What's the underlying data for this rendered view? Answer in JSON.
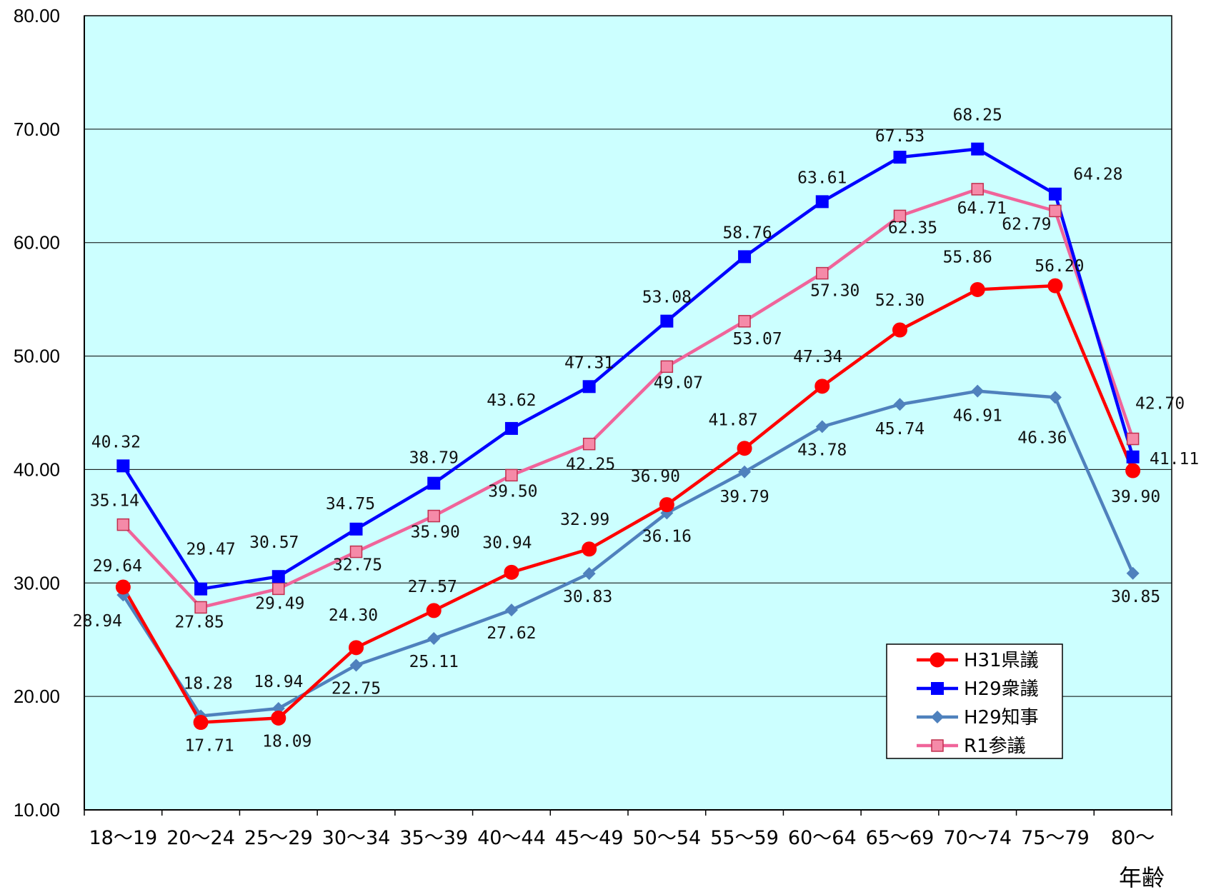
{
  "chart_data": {
    "type": "line",
    "title": "",
    "xlabel": "年齢",
    "ylabel": "",
    "ylim": [
      10,
      80
    ],
    "y_tick_labels": [
      "10.00",
      "20.00",
      "30.00",
      "40.00",
      "50.00",
      "60.00",
      "70.00",
      "80.00"
    ],
    "categories": [
      "18～19",
      "20～24",
      "25～29",
      "30～34",
      "35～39",
      "40～44",
      "45～49",
      "50～54",
      "55～59",
      "60～64",
      "65～69",
      "70～74",
      "75～79",
      "80～"
    ],
    "grid": true,
    "legend_position": "bottom-right",
    "plot_background": "#ccffff",
    "series": [
      {
        "name": "H31県議",
        "color": "#ff0000",
        "marker": "circle",
        "values": [
          29.64,
          17.71,
          18.09,
          24.3,
          27.57,
          30.94,
          32.99,
          36.9,
          41.87,
          47.34,
          52.3,
          55.86,
          56.2,
          39.9
        ],
        "labels": [
          "29.64",
          "17.71",
          "18.09",
          "24.30",
          "27.57",
          "30.94",
          "32.99",
          "36.90",
          "41.87",
          "47.34",
          "52.30",
          "55.86",
          "56.20",
          "39.90"
        ]
      },
      {
        "name": "H29衆議",
        "color": "#0000ff",
        "marker": "square",
        "values": [
          40.32,
          29.47,
          30.57,
          34.75,
          38.79,
          43.62,
          47.31,
          53.08,
          58.76,
          63.61,
          67.53,
          68.25,
          64.28,
          41.11
        ],
        "labels": [
          "40.32",
          "29.47",
          "30.57",
          "34.75",
          "38.79",
          "43.62",
          "47.31",
          "53.08",
          "58.76",
          "63.61",
          "67.53",
          "68.25",
          "64.28",
          "41.11"
        ]
      },
      {
        "name": "H29知事",
        "color": "#4f81bd",
        "marker": "diamond",
        "values": [
          28.94,
          18.28,
          18.94,
          22.75,
          25.11,
          27.62,
          30.83,
          36.16,
          39.79,
          43.78,
          45.74,
          46.91,
          46.36,
          30.85
        ],
        "labels": [
          "28.94",
          "18.28",
          "18.94",
          "22.75",
          "25.11",
          "27.62",
          "30.83",
          "36.16",
          "39.79",
          "43.78",
          "45.74",
          "46.91",
          "46.36",
          "30.85"
        ]
      },
      {
        "name": "R1参議",
        "color": "#f0649a",
        "marker": "square-hollow",
        "values": [
          35.14,
          27.85,
          29.49,
          32.75,
          35.9,
          39.5,
          42.25,
          49.07,
          53.07,
          57.3,
          62.35,
          64.71,
          62.79,
          42.7
        ],
        "labels": [
          "35.14",
          "27.85",
          "29.49",
          "32.75",
          "35.90",
          "39.50",
          "42.25",
          "49.07",
          "53.07",
          "57.30",
          "62.35",
          "64.71",
          "62.79",
          "42.70"
        ]
      }
    ]
  }
}
